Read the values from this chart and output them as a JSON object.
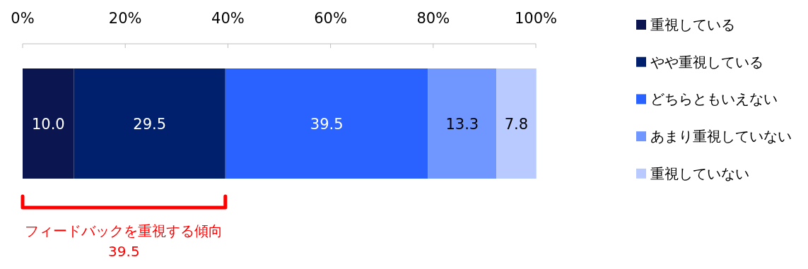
{
  "chart_data": {
    "type": "bar",
    "orientation": "horizontal",
    "stacked": true,
    "categories": [
      null
    ],
    "series": [
      {
        "name": "重視している",
        "color": "#0b1650",
        "values": [
          10.0
        ],
        "value_labels": [
          "10.0"
        ]
      },
      {
        "name": "やや重視している",
        "color": "#00206e",
        "values": [
          29.5
        ],
        "value_labels": [
          "29.5"
        ]
      },
      {
        "name": "どちらともいえない",
        "color": "#2962ff",
        "values": [
          39.5
        ],
        "value_labels": [
          "39.5"
        ]
      },
      {
        "name": "あまり重視していない",
        "color": "#7096ff",
        "values": [
          13.3
        ],
        "value_labels": [
          "13.3"
        ]
      },
      {
        "name": "重視していない",
        "color": "#b8caff",
        "values": [
          7.8
        ],
        "value_labels": [
          "7.8"
        ]
      }
    ],
    "xlim": [
      0,
      100
    ],
    "xticks": [
      {
        "value": 0,
        "label": "0%"
      },
      {
        "value": 20,
        "label": "20%"
      },
      {
        "value": 40,
        "label": "40%"
      },
      {
        "value": 60,
        "label": "60%"
      },
      {
        "value": 80,
        "label": "80%"
      },
      {
        "value": 100,
        "label": "100%"
      }
    ],
    "legend": "right",
    "annotations": [
      "フィードバックを重視する傾向",
      "39.5"
    ]
  }
}
